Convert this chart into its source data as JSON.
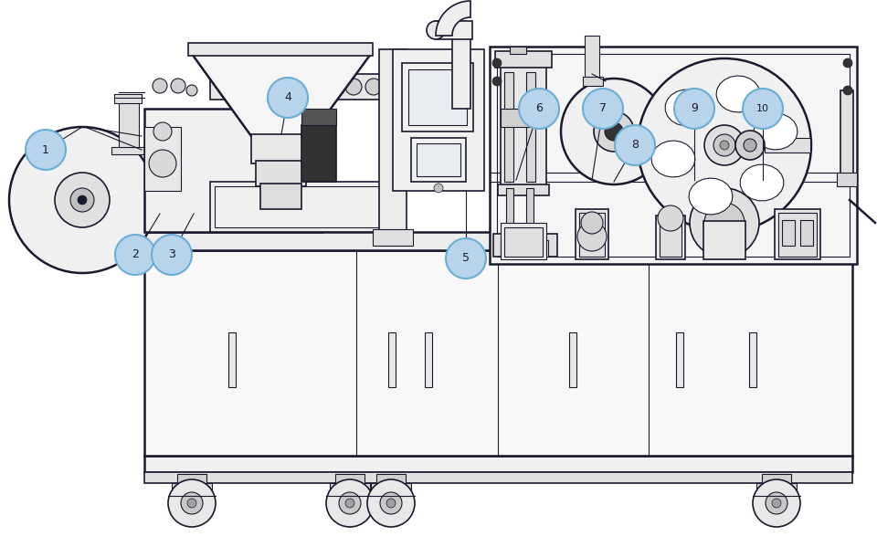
{
  "background_color": "#ffffff",
  "line_color": "#1a1a2e",
  "label_bg_color": "#b8d4ea",
  "label_border_color": "#6aaed6",
  "label_text_color": "#1a1a2e",
  "figsize": [
    9.6,
    5.99
  ],
  "dpi": 100
}
